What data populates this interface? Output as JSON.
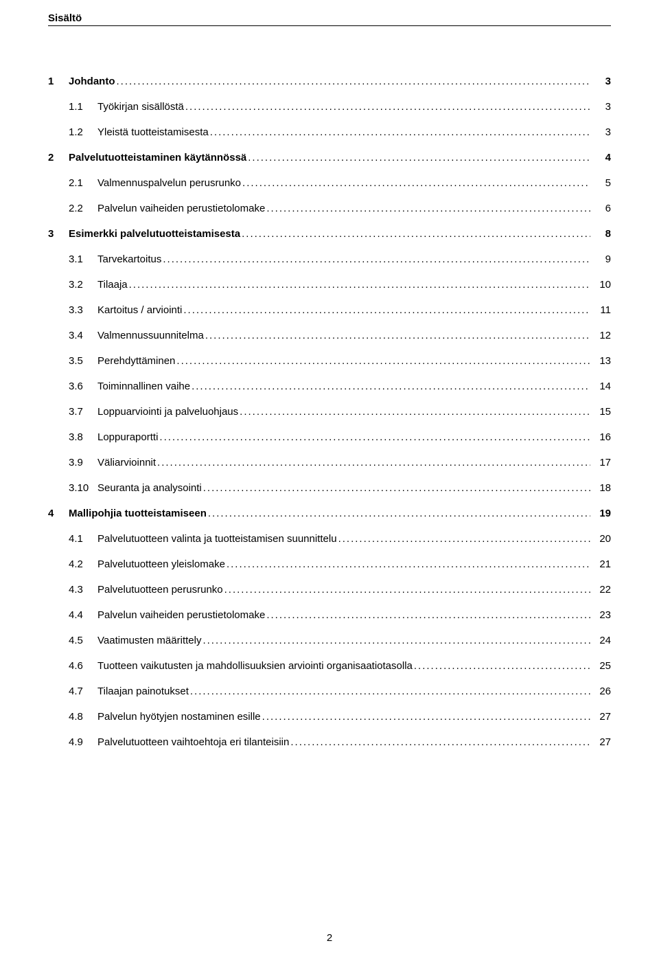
{
  "header": {
    "title": "Sisältö"
  },
  "page_number": "2",
  "toc": [
    {
      "level": 1,
      "bold": true,
      "num": "1",
      "text": "Johdanto",
      "page": "3"
    },
    {
      "level": 2,
      "bold": false,
      "num": "1.1",
      "text": "Työkirjan sisällöstä",
      "page": "3"
    },
    {
      "level": 2,
      "bold": false,
      "num": "1.2",
      "text": "Yleistä tuotteistamisesta",
      "page": "3"
    },
    {
      "level": 1,
      "bold": true,
      "num": "2",
      "text": "Palvelutuotteistaminen käytännössä",
      "page": "4"
    },
    {
      "level": 2,
      "bold": false,
      "num": "2.1",
      "text": "Valmennuspalvelun perusrunko",
      "page": "5"
    },
    {
      "level": 2,
      "bold": false,
      "num": "2.2",
      "text": "Palvelun vaiheiden perustietolomake",
      "page": "6"
    },
    {
      "level": 1,
      "bold": true,
      "num": "3",
      "text": "Esimerkki palvelutuotteistamisesta",
      "page": "8"
    },
    {
      "level": 2,
      "bold": false,
      "num": "3.1",
      "text": "Tarvekartoitus",
      "page": "9"
    },
    {
      "level": 2,
      "bold": false,
      "num": "3.2",
      "text": "Tilaaja",
      "page": "10"
    },
    {
      "level": 2,
      "bold": false,
      "num": "3.3",
      "text": "Kartoitus / arviointi",
      "page": "11"
    },
    {
      "level": 2,
      "bold": false,
      "num": "3.4",
      "text": "Valmennussuunnitelma",
      "page": "12"
    },
    {
      "level": 2,
      "bold": false,
      "num": "3.5",
      "text": "Perehdyttäminen",
      "page": "13"
    },
    {
      "level": 2,
      "bold": false,
      "num": "3.6",
      "text": "Toiminnallinen vaihe",
      "page": "14"
    },
    {
      "level": 2,
      "bold": false,
      "num": "3.7",
      "text": "Loppuarviointi ja palveluohjaus",
      "page": "15"
    },
    {
      "level": 2,
      "bold": false,
      "num": "3.8",
      "text": "Loppuraportti",
      "page": "16"
    },
    {
      "level": 2,
      "bold": false,
      "num": "3.9",
      "text": "Väliarvioinnit",
      "page": "17"
    },
    {
      "level": 2,
      "bold": false,
      "num": "3.10",
      "text": "Seuranta ja analysointi",
      "page": "18"
    },
    {
      "level": 1,
      "bold": true,
      "num": "4",
      "text": "Mallipohjia tuotteistamiseen",
      "page": "19"
    },
    {
      "level": 2,
      "bold": false,
      "num": "4.1",
      "text": "Palvelutuotteen valinta ja tuotteistamisen suunnittelu",
      "page": "20"
    },
    {
      "level": 2,
      "bold": false,
      "num": "4.2",
      "text": "Palvelutuotteen yleislomake",
      "page": "21"
    },
    {
      "level": 2,
      "bold": false,
      "num": "4.3",
      "text": "Palvelutuotteen perusrunko",
      "page": "22"
    },
    {
      "level": 2,
      "bold": false,
      "num": "4.4",
      "text": "Palvelun vaiheiden perustietolomake",
      "page": "23"
    },
    {
      "level": 2,
      "bold": false,
      "num": "4.5",
      "text": "Vaatimusten määrittely",
      "page": "24"
    },
    {
      "level": 2,
      "bold": false,
      "num": "4.6",
      "text": "Tuotteen vaikutusten ja mahdollisuuksien arviointi organisaatiotasolla",
      "page": "25"
    },
    {
      "level": 2,
      "bold": false,
      "num": "4.7",
      "text": "Tilaajan painotukset",
      "page": "26"
    },
    {
      "level": 2,
      "bold": false,
      "num": "4.8",
      "text": "Palvelun hyötyjen nostaminen esille",
      "page": "27"
    },
    {
      "level": 2,
      "bold": false,
      "num": "4.9",
      "text": "Palvelutuotteen vaihtoehtoja eri tilanteisiin",
      "page": "27"
    }
  ]
}
